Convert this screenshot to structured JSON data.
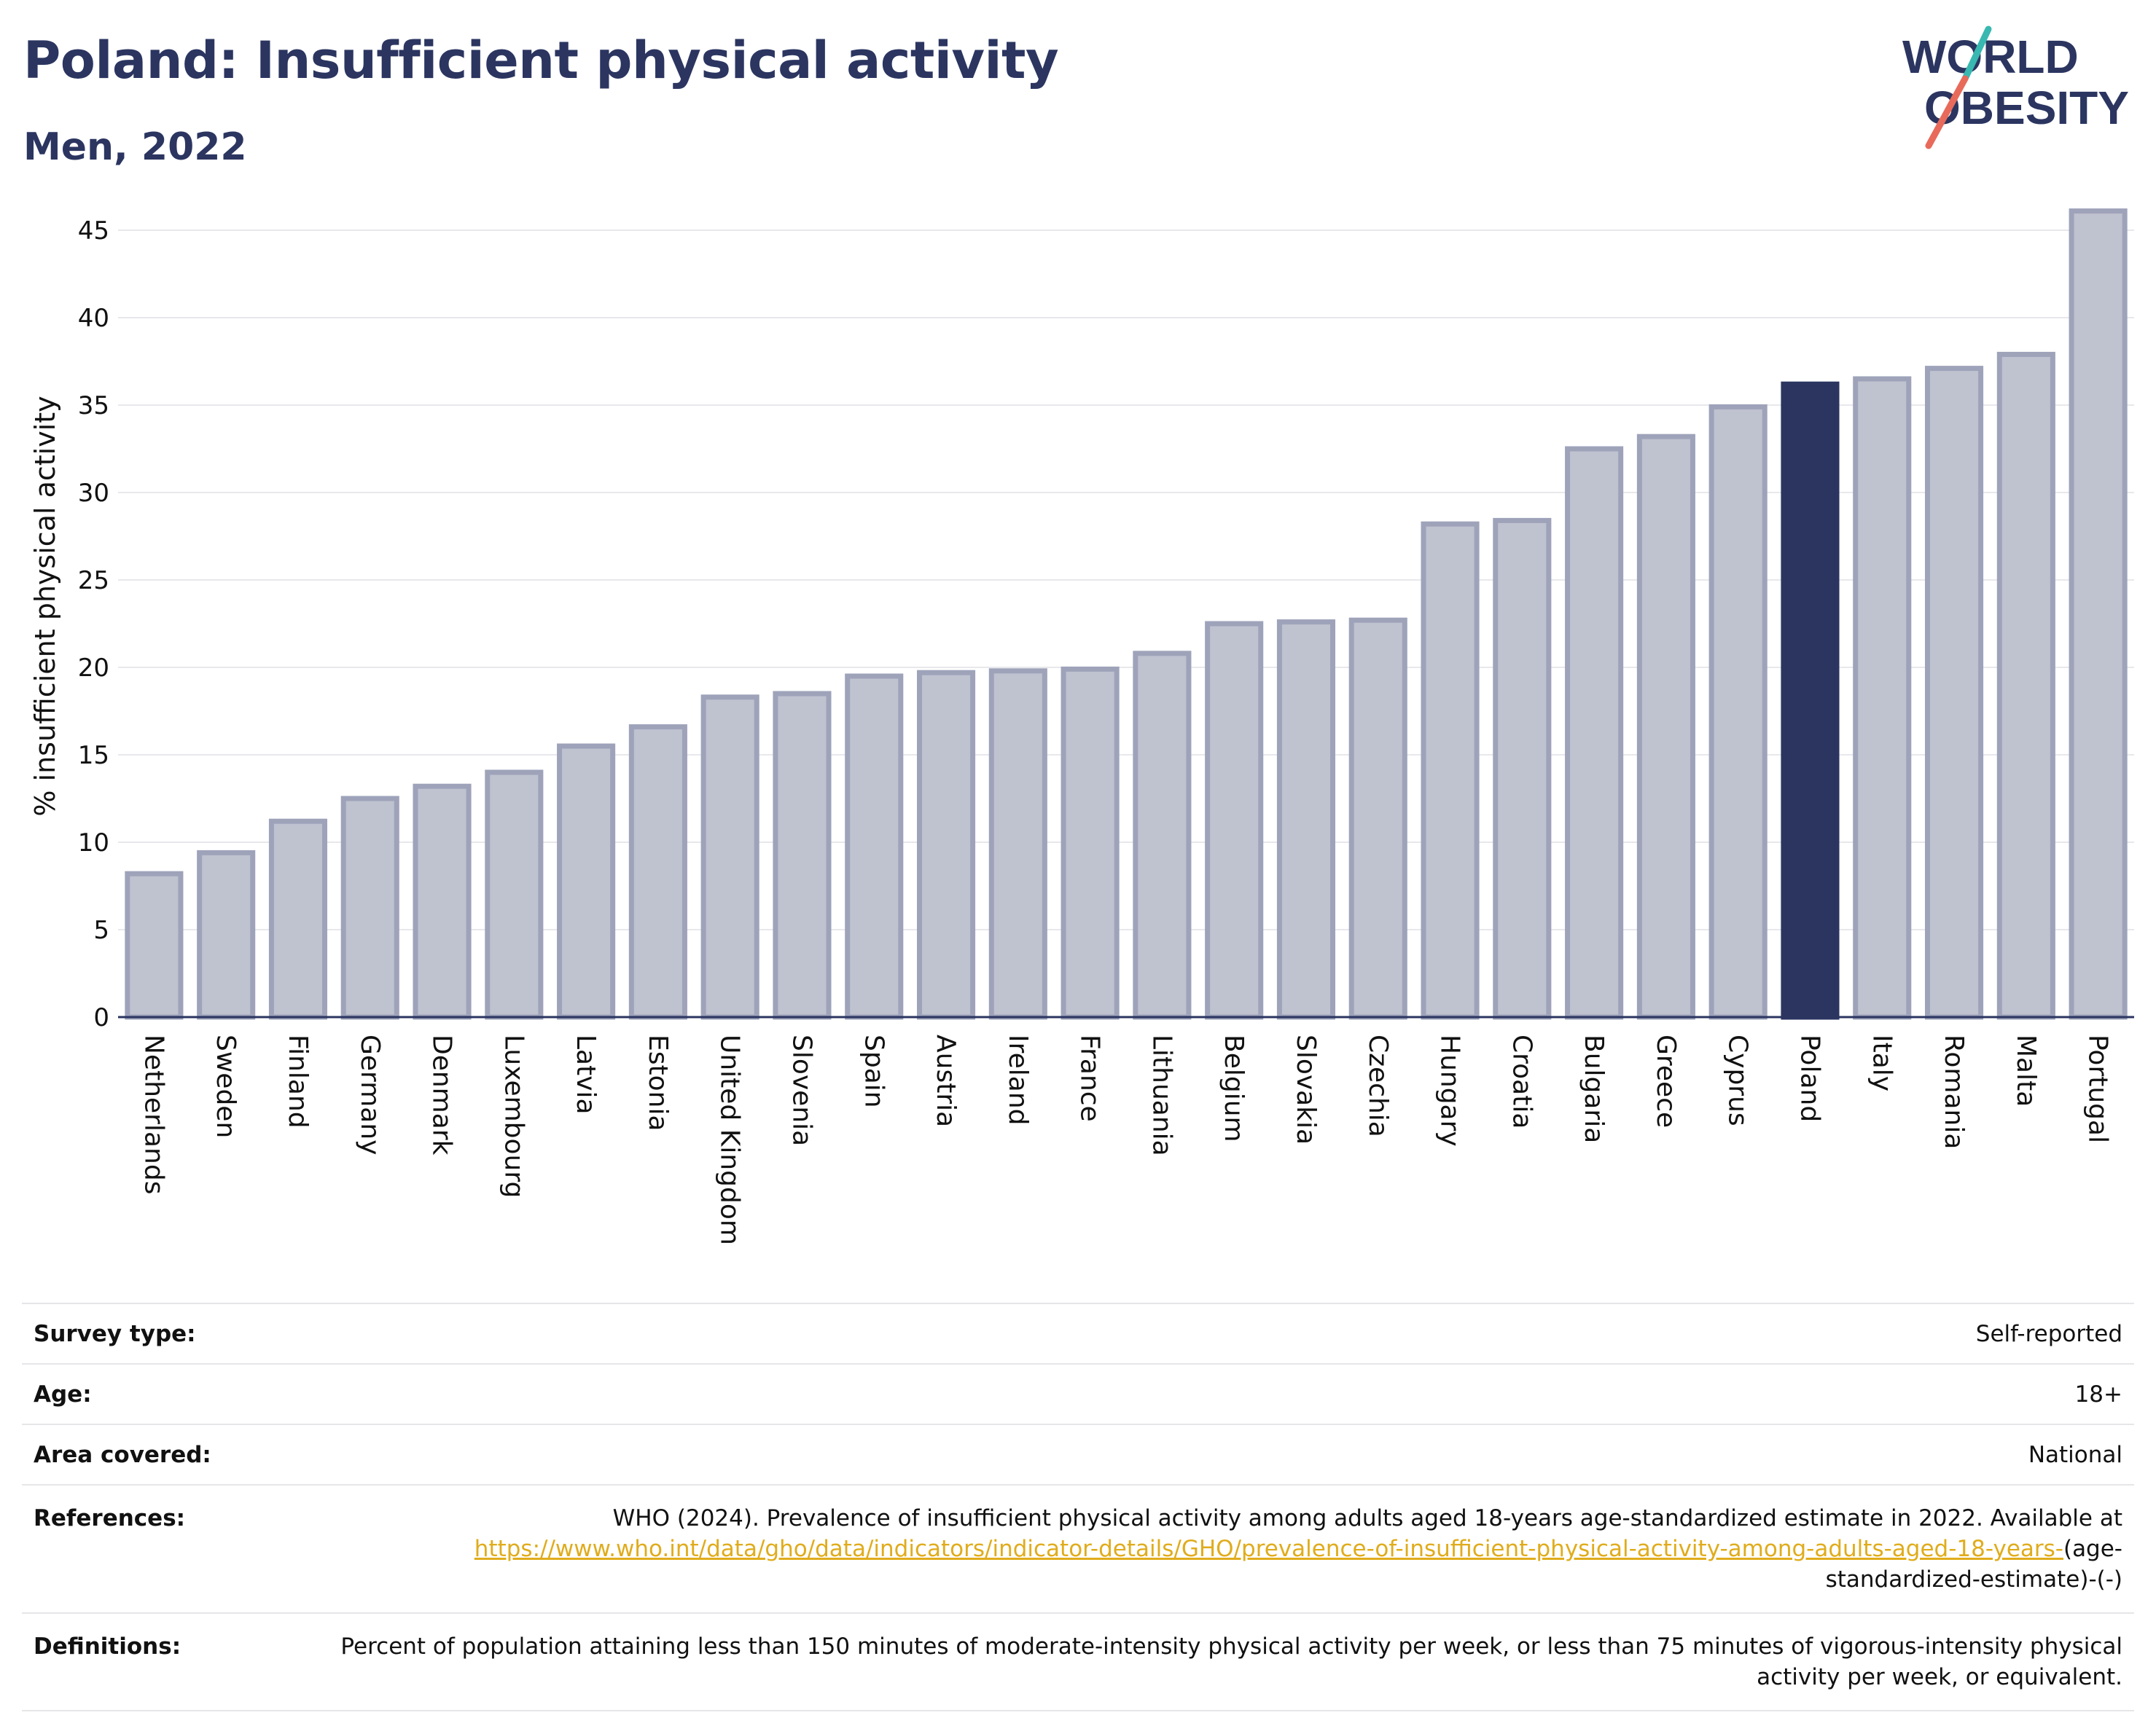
{
  "header": {
    "title": "Poland: Insufficient physical activity",
    "subtitle": "Men, 2022"
  },
  "logo": {
    "line1": "WORLD",
    "line2": "OBESITY",
    "text_color": "#2b3560",
    "slash_colors": [
      "#38b8b0",
      "#e86a5a"
    ]
  },
  "colors": {
    "bar_default": "#bfc2cf",
    "bar_default_stroke": "#9ea3ba",
    "bar_highlight": "#2b3560",
    "axis": "#2b3560",
    "grid": "#e8e8ec"
  },
  "chart_data": {
    "type": "bar",
    "ylabel": "% insufficient physical activity",
    "xlabel": "",
    "ylim": [
      0,
      47
    ],
    "yticks": [
      0,
      5,
      10,
      15,
      20,
      25,
      30,
      35,
      40,
      45
    ],
    "grid": true,
    "highlight": "Poland",
    "categories": [
      "Netherlands",
      "Sweden",
      "Finland",
      "Germany",
      "Denmark",
      "Luxembourg",
      "Latvia",
      "Estonia",
      "United Kingdom",
      "Slovenia",
      "Spain",
      "Austria",
      "Ireland",
      "France",
      "Lithuania",
      "Belgium",
      "Slovakia",
      "Czechia",
      "Hungary",
      "Croatia",
      "Bulgaria",
      "Greece",
      "Cyprus",
      "Poland",
      "Italy",
      "Romania",
      "Malta",
      "Portugal"
    ],
    "values": [
      8.2,
      9.4,
      11.2,
      12.5,
      13.2,
      14.0,
      15.5,
      16.6,
      18.3,
      18.5,
      19.5,
      19.7,
      19.8,
      19.9,
      20.8,
      22.5,
      22.6,
      22.7,
      28.2,
      28.4,
      32.5,
      33.2,
      34.9,
      36.2,
      36.5,
      37.1,
      37.9,
      46.1
    ]
  },
  "info": {
    "survey_type": {
      "label": "Survey type:",
      "value": "Self-reported"
    },
    "age": {
      "label": "Age:",
      "value": "18+"
    },
    "area": {
      "label": "Area covered:",
      "value": "National"
    },
    "references": {
      "label": "References:",
      "text": "WHO (2024). Prevalence of insufficient physical activity among adults aged 18-years age-standardized estimate in 2022. Available at",
      "link": "https://www.who.int/data/gho/data/indicators/indicator-details/GHO/prevalence-of-insufficient-physical-activity-among-adults-aged-18-years-",
      "suffix": "(age-standardized-estimate)-(-)"
    },
    "definitions": {
      "label": "Definitions:",
      "value": "Percent of population attaining less than 150 minutes of moderate-intensity physical activity per week, or less than 75 minutes of vigorous-intensity physical activity per week, or equivalent."
    }
  }
}
